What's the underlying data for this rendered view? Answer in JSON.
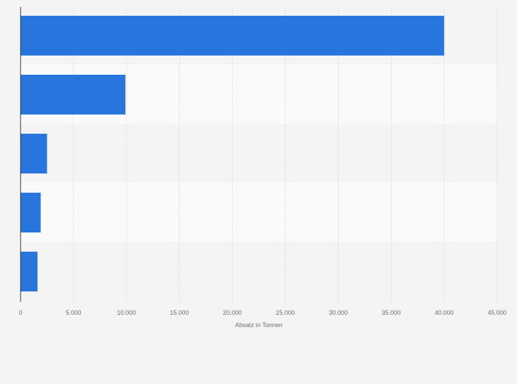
{
  "chart_data": {
    "type": "bar",
    "orientation": "horizontal",
    "title": "",
    "xlabel": "Absatz in Tonnen",
    "ylabel": "",
    "categories": [
      "",
      "",
      "",
      "",
      ""
    ],
    "values": [
      40000,
      9900,
      2500,
      1900,
      1600
    ],
    "xlim": [
      0,
      45000
    ],
    "xticks": [
      0,
      5000,
      10000,
      15000,
      20000,
      25000,
      30000,
      35000,
      40000,
      45000
    ],
    "xtick_labels": [
      "0",
      "5.000",
      "10.000",
      "15.000",
      "20.000",
      "25.000",
      "30.000",
      "35.000",
      "40.000",
      "45.000"
    ],
    "grid": true,
    "legend": "none",
    "bar_color": "#2876dd",
    "band_colors": [
      "#f4f4f4",
      "#fafafa"
    ]
  }
}
